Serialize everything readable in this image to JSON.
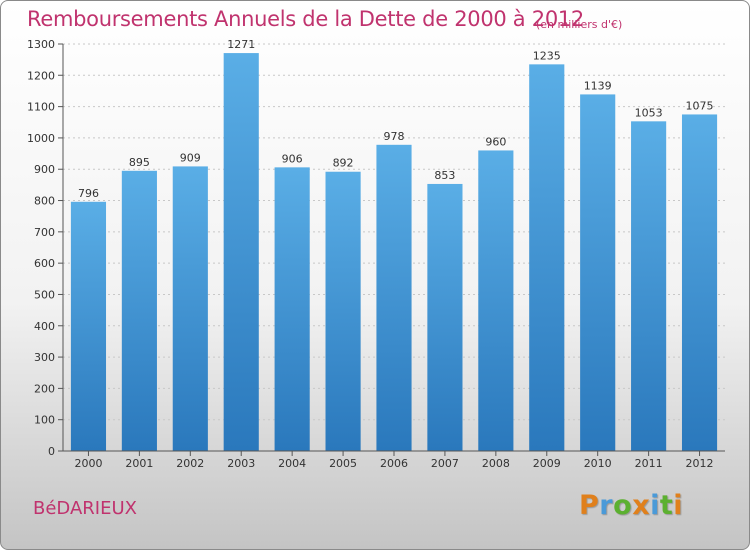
{
  "header": {
    "title": "Remboursements Annuels de la Dette de 2000 à 2012",
    "subtitle": "(en milliers d'€)"
  },
  "footer": {
    "city": "BéDARIEUX",
    "logo_letters": [
      "P",
      "r",
      "o",
      "x",
      "i",
      "t",
      "i"
    ],
    "logo_colors": [
      "#e0801c",
      "#4a9ad8",
      "#5cb030",
      "#e0801c",
      "#4a9ad8",
      "#5cb030",
      "#e0801c"
    ]
  },
  "colors": {
    "accent": "#c0336e",
    "bar_top": "#5aaee6",
    "bar_bottom": "#2a78bc"
  },
  "chart_data": {
    "type": "bar",
    "title": "Remboursements Annuels de la Dette de 2000 à 2012",
    "subtitle": "(en milliers d'€)",
    "categories": [
      "2000",
      "2001",
      "2002",
      "2003",
      "2004",
      "2005",
      "2006",
      "2007",
      "2008",
      "2009",
      "2010",
      "2011",
      "2012"
    ],
    "values": [
      796,
      895,
      909,
      1271,
      906,
      892,
      978,
      853,
      960,
      1235,
      1139,
      1053,
      1075
    ],
    "ylim": [
      0,
      1300
    ],
    "yticks": [
      0,
      100,
      200,
      300,
      400,
      500,
      600,
      700,
      800,
      900,
      1000,
      1100,
      1200,
      1300
    ],
    "grid": "horizontal"
  }
}
